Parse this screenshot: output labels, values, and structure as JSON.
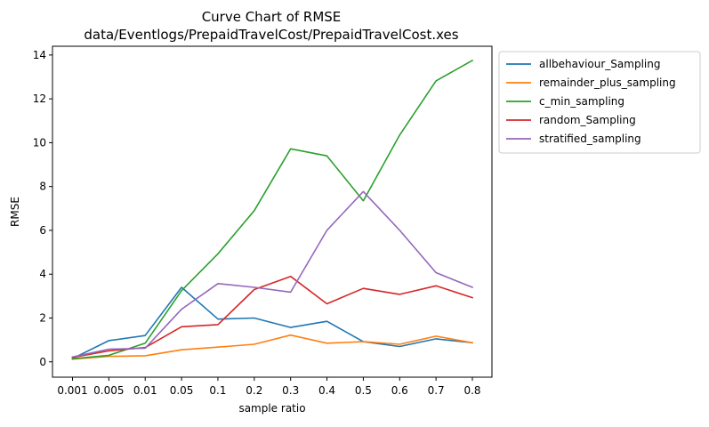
{
  "chart_data": {
    "type": "line",
    "title": "Curve Chart of RMSE",
    "subtitle": "data/Eventlogs/PrepaidTravelCost/PrepaidTravelCost.xes",
    "xlabel": "sample ratio",
    "ylabel": "RMSE",
    "categories": [
      "0.001",
      "0.005",
      "0.01",
      "0.05",
      "0.1",
      "0.2",
      "0.3",
      "0.4",
      "0.5",
      "0.6",
      "0.7",
      "0.8"
    ],
    "ylim": [
      -0.7,
      14.4
    ],
    "yticks": [
      0,
      2,
      4,
      6,
      8,
      10,
      12,
      14
    ],
    "grid": false,
    "legend_position": "outside-right-top",
    "series": [
      {
        "name": "allbehaviour_Sampling",
        "color": "#1f77b4",
        "values": [
          0.15,
          0.97,
          1.2,
          3.4,
          1.95,
          2.0,
          1.57,
          1.85,
          0.92,
          0.7,
          1.05,
          0.87
        ]
      },
      {
        "name": "remainder_plus_sampling",
        "color": "#ff7f0e",
        "values": [
          0.12,
          0.25,
          0.28,
          0.55,
          0.67,
          0.8,
          1.22,
          0.85,
          0.92,
          0.8,
          1.17,
          0.87
        ]
      },
      {
        "name": "c_min_sampling",
        "color": "#2ca02c",
        "values": [
          0.14,
          0.3,
          0.85,
          3.25,
          4.93,
          6.9,
          9.72,
          9.4,
          7.35,
          10.35,
          12.82,
          13.75
        ]
      },
      {
        "name": "random_Sampling",
        "color": "#d62728",
        "values": [
          0.2,
          0.5,
          0.65,
          1.6,
          1.7,
          3.3,
          3.9,
          2.65,
          3.35,
          3.08,
          3.47,
          2.93
        ]
      },
      {
        "name": "stratified_sampling",
        "color": "#9467bd",
        "values": [
          0.22,
          0.58,
          0.62,
          2.4,
          3.57,
          3.4,
          3.18,
          6.0,
          7.77,
          6.0,
          4.07,
          3.4
        ]
      }
    ]
  }
}
